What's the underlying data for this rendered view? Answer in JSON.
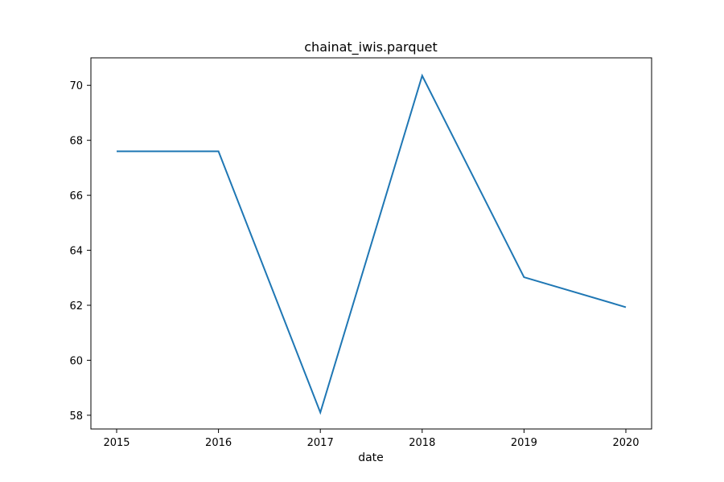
{
  "chart_data": {
    "type": "line",
    "title": "chainat_iwis.parquet",
    "xlabel": "date",
    "ylabel": "",
    "x": [
      "2015",
      "2016",
      "2017",
      "2018",
      "2019",
      "2020"
    ],
    "x_ticks": [
      "2015",
      "2016",
      "2017",
      "2018",
      "2019",
      "2020"
    ],
    "y_ticks": [
      58,
      60,
      62,
      64,
      66,
      68,
      70
    ],
    "ylim": [
      57.5,
      71.0
    ],
    "grid": false,
    "series": [
      {
        "color": "#1f77b4",
        "values": [
          67.6,
          67.6,
          58.1,
          70.35,
          63.02,
          61.93
        ]
      }
    ]
  }
}
